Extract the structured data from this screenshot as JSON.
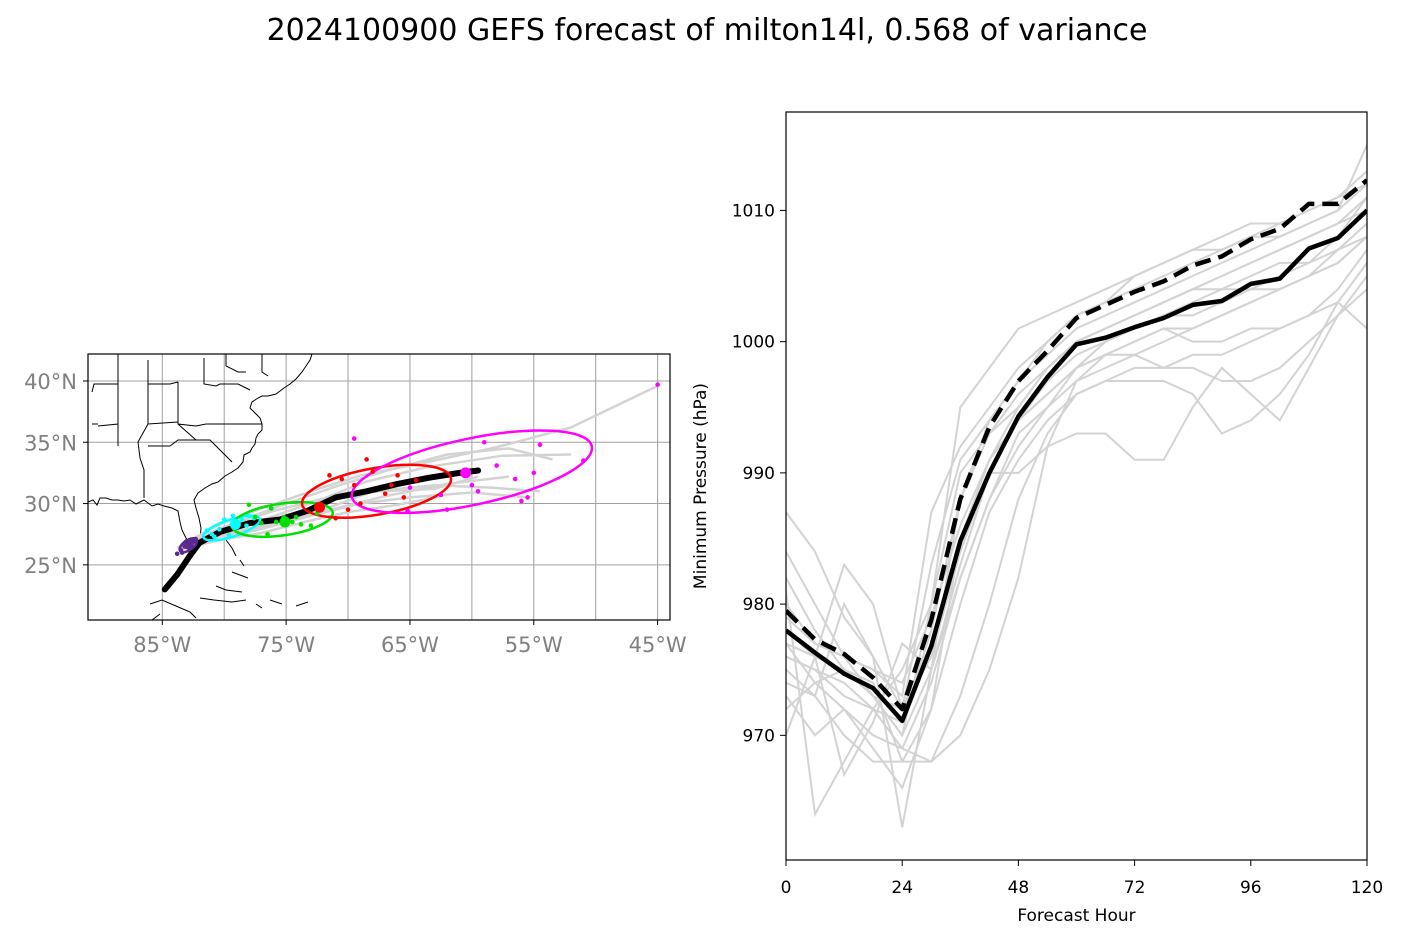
{
  "title": "2024100900 GEFS forecast of milton14l, 0.568 of variance",
  "chart_data": [
    {
      "type": "map",
      "lon_range": [
        -91,
        -44
      ],
      "lat_range": [
        20.5,
        42.2
      ],
      "x_ticks": [
        "85°W",
        "75°W",
        "65°W",
        "55°W",
        "45°W"
      ],
      "y_ticks": [
        "25°N",
        "30°N",
        "35°N",
        "40°N"
      ],
      "x_tick_values": [
        -85,
        -75,
        -65,
        -55,
        -45
      ],
      "y_tick_values": [
        25,
        30,
        35,
        40
      ],
      "grid": true,
      "mean_track": [
        [
          -84.8,
          23.0
        ],
        [
          -83.8,
          24.2
        ],
        [
          -82.8,
          25.7
        ],
        [
          -82.0,
          26.8
        ],
        [
          -80.3,
          27.7
        ],
        [
          -78.0,
          28.4
        ],
        [
          -75.5,
          28.7
        ],
        [
          -73.3,
          29.4
        ],
        [
          -71.0,
          30.5
        ],
        [
          -68.5,
          31.0
        ],
        [
          -66.0,
          31.6
        ],
        [
          -63.5,
          32.1
        ],
        [
          -61.0,
          32.5
        ],
        [
          -59.5,
          32.7
        ]
      ],
      "member_tracks": [
        [
          [
            -83.8,
            26.4
          ],
          [
            -80.6,
            28.2
          ],
          [
            -77.0,
            29.6
          ],
          [
            -73.0,
            31.0
          ],
          [
            -69.0,
            32.3
          ],
          [
            -64.0,
            33.3
          ],
          [
            -58.0,
            34.6
          ],
          [
            -52.0,
            36.2
          ],
          [
            -45.0,
            39.6
          ]
        ],
        [
          [
            -83.5,
            26.5
          ],
          [
            -80.0,
            28.0
          ],
          [
            -76.5,
            28.8
          ],
          [
            -72.5,
            30.2
          ],
          [
            -68.5,
            31.8
          ],
          [
            -63.5,
            33.0
          ],
          [
            -57.5,
            33.9
          ],
          [
            -52.0,
            34.0
          ]
        ],
        [
          [
            -83.5,
            26.5
          ],
          [
            -80.0,
            27.6
          ],
          [
            -76.0,
            28.3
          ],
          [
            -72.0,
            29.5
          ],
          [
            -68.0,
            31.0
          ],
          [
            -63.0,
            31.5
          ],
          [
            -58.5,
            31.3
          ],
          [
            -54.5,
            31.0
          ]
        ],
        [
          [
            -83.6,
            26.4
          ],
          [
            -80.2,
            27.4
          ],
          [
            -76.8,
            28.0
          ],
          [
            -73.0,
            29.0
          ],
          [
            -69.0,
            30.0
          ],
          [
            -65.0,
            30.5
          ],
          [
            -60.0,
            30.9
          ],
          [
            -55.5,
            30.5
          ]
        ],
        [
          [
            -83.6,
            26.3
          ],
          [
            -80.3,
            27.3
          ],
          [
            -77.5,
            27.8
          ],
          [
            -74.5,
            28.6
          ],
          [
            -71.0,
            29.6
          ],
          [
            -67.0,
            30.6
          ],
          [
            -62.0,
            31.6
          ],
          [
            -57.0,
            32.2
          ]
        ],
        [
          [
            -83.4,
            26.6
          ],
          [
            -79.5,
            28.3
          ],
          [
            -75.5,
            29.8
          ],
          [
            -71.0,
            31.4
          ],
          [
            -66.5,
            32.8
          ],
          [
            -62.0,
            34.0
          ],
          [
            -57.0,
            34.5
          ],
          [
            -53.5,
            33.6
          ]
        ],
        [
          [
            -83.5,
            26.6
          ],
          [
            -80.0,
            28.1
          ],
          [
            -76.0,
            29.4
          ],
          [
            -72.0,
            30.4
          ],
          [
            -67.5,
            31.0
          ],
          [
            -63.0,
            31.2
          ],
          [
            -59.5,
            32.2
          ]
        ],
        [
          [
            -83.7,
            26.2
          ],
          [
            -80.5,
            27.0
          ],
          [
            -77.0,
            27.6
          ],
          [
            -73.5,
            28.5
          ],
          [
            -70.0,
            29.3
          ],
          [
            -66.0,
            29.9
          ],
          [
            -62.5,
            30.6
          ]
        ]
      ],
      "ellipses": [
        {
          "color": "#5b2a91",
          "center": [
            -82.9,
            26.6
          ],
          "semi_axes_deg": [
            0.8,
            0.4
          ],
          "angle": 35
        },
        {
          "color": "#00ffff",
          "center": [
            -79.4,
            28.0
          ],
          "semi_axes_deg": [
            2.4,
            0.7
          ],
          "angle": 18
        },
        {
          "color": "#00e000",
          "center": [
            -75.3,
            28.7
          ],
          "semi_axes_deg": [
            4.1,
            1.3
          ],
          "angle": 8
        },
        {
          "color": "#ff0000",
          "center": [
            -67.7,
            31.0
          ],
          "semi_axes_deg": [
            6.1,
            1.9
          ],
          "angle": 10
        },
        {
          "color": "#ff00ff",
          "center": [
            -60.0,
            32.6
          ],
          "semi_axes_deg": [
            9.9,
            2.7
          ],
          "angle": 12
        }
      ],
      "point_groups": [
        {
          "color": "#5b2a91",
          "mean": [
            -82.9,
            26.7
          ],
          "points": [
            [
              -83.8,
              25.9
            ],
            [
              -83.5,
              26.2
            ],
            [
              -83.2,
              26.5
            ],
            [
              -83.0,
              26.6
            ],
            [
              -82.8,
              26.8
            ],
            [
              -82.6,
              26.9
            ],
            [
              -82.3,
              27.1
            ],
            [
              -83.4,
              26.0
            ],
            [
              -82.9,
              26.4
            ],
            [
              -83.1,
              26.8
            ],
            [
              -82.7,
              26.5
            ],
            [
              -82.4,
              26.9
            ]
          ]
        },
        {
          "color": "#00ffff",
          "mean": [
            -79.1,
            28.3
          ],
          "points": [
            [
              -81.0,
              27.5
            ],
            [
              -80.4,
              27.9
            ],
            [
              -80.0,
              28.7
            ],
            [
              -79.6,
              27.4
            ],
            [
              -79.0,
              28.4
            ],
            [
              -78.6,
              28.7
            ],
            [
              -78.2,
              28.2
            ],
            [
              -77.6,
              28.8
            ],
            [
              -81.4,
              27.8
            ],
            [
              -80.8,
              27.3
            ],
            [
              -79.3,
              29.0
            ],
            [
              -78.0,
              29.0
            ]
          ]
        },
        {
          "color": "#00e000",
          "mean": [
            -75.1,
            28.5
          ],
          "points": [
            [
              -78.0,
              29.9
            ],
            [
              -77.0,
              28.4
            ],
            [
              -76.5,
              27.5
            ],
            [
              -75.8,
              28.5
            ],
            [
              -75.2,
              28.9
            ],
            [
              -74.5,
              28.5
            ],
            [
              -73.8,
              28.3
            ],
            [
              -73.0,
              28.2
            ],
            [
              -72.5,
              29.2
            ],
            [
              -76.2,
              29.6
            ],
            [
              -74.2,
              28.9
            ],
            [
              -77.5,
              28.9
            ]
          ]
        },
        {
          "color": "#ff0000",
          "mean": [
            -72.3,
            29.7
          ],
          "points": [
            [
              -71.5,
              32.3
            ],
            [
              -70.5,
              32.0
            ],
            [
              -69.5,
              31.5
            ],
            [
              -68.5,
              33.6
            ],
            [
              -68.0,
              32.6
            ],
            [
              -67.0,
              30.8
            ],
            [
              -66.5,
              31.5
            ],
            [
              -65.5,
              30.5
            ],
            [
              -64.5,
              31.9
            ],
            [
              -70.0,
              29.5
            ],
            [
              -71.0,
              28.8
            ],
            [
              -72.5,
              29.9
            ],
            [
              -69.0,
              30.0
            ],
            [
              -66.0,
              32.3
            ]
          ]
        },
        {
          "color": "#ff00ff",
          "mean": [
            -60.5,
            32.5
          ],
          "points": [
            [
              -69.5,
              35.3
            ],
            [
              -65.0,
              31.3
            ],
            [
              -65.2,
              29.4
            ],
            [
              -62.0,
              29.5
            ],
            [
              -59.5,
              31.0
            ],
            [
              -59.0,
              35.0
            ],
            [
              -58.0,
              33.1
            ],
            [
              -56.5,
              32.0
            ],
            [
              -55.5,
              30.5
            ],
            [
              -54.5,
              34.8
            ],
            [
              -51.0,
              33.5
            ],
            [
              -55.0,
              32.5
            ],
            [
              -45.0,
              39.7
            ],
            [
              -60.0,
              31.5
            ],
            [
              -62.5,
              30.7
            ],
            [
              -56.0,
              30.2
            ]
          ]
        }
      ]
    },
    {
      "type": "line",
      "xlabel": "Forecast Hour",
      "ylabel": "Minimum Pressure (hPa)",
      "xlim": [
        0,
        120
      ],
      "ylim": [
        960.5,
        1017.5
      ],
      "x_ticks": [
        0,
        24,
        48,
        72,
        96,
        120
      ],
      "y_ticks": [
        970,
        980,
        990,
        1000,
        1010
      ],
      "x": [
        0,
        6,
        12,
        18,
        24,
        30,
        36,
        42,
        48,
        54,
        60,
        66,
        72,
        78,
        84,
        90,
        96,
        102,
        108,
        114,
        120
      ],
      "series": [
        {
          "style": "solid-black",
          "values": [
            978.0,
            976.3,
            974.7,
            973.6,
            971.1,
            976.8,
            984.8,
            990.0,
            994.3,
            997.3,
            999.8,
            1000.3,
            1001.1,
            1001.8,
            1002.8,
            1003.1,
            1004.4,
            1004.8,
            1007.1,
            1007.9,
            1010.0
          ]
        },
        {
          "style": "dashed-black",
          "values": [
            979.5,
            977.3,
            976.2,
            974.4,
            972.0,
            978.8,
            988.0,
            993.5,
            997.0,
            999.3,
            1001.8,
            1002.8,
            1003.8,
            1004.6,
            1005.8,
            1006.5,
            1007.8,
            1008.6,
            1010.5,
            1010.5,
            1012.3
          ]
        }
      ],
      "members": [
        [
          987,
          984,
          979,
          976,
          972,
          977,
          985,
          991,
          995,
          998,
          1000,
          1001,
          1002,
          1003,
          1004,
          1005,
          1006,
          1007,
          1008,
          1009,
          1010
        ],
        [
          984,
          980,
          976,
          973,
          970,
          975,
          983,
          990,
          994,
          997,
          999,
          1000,
          1001,
          1002,
          1002,
          1003,
          1004,
          1004,
          1005,
          1006,
          1008
        ],
        [
          981,
          964,
          968,
          972,
          975,
          980,
          990,
          993,
          995,
          998,
          1000,
          1001,
          1002,
          1003,
          1004,
          1004,
          1005,
          1006,
          1006,
          1008,
          1011
        ],
        [
          979,
          977,
          976,
          975,
          973,
          987,
          992,
          995,
          998,
          1000,
          1002,
          1003,
          1004,
          1005,
          1006,
          1007,
          1008,
          1009,
          1010,
          1011,
          1012
        ],
        [
          977,
          976,
          983,
          980,
          972,
          983,
          991,
          994,
          997,
          999,
          1001,
          1002,
          1003,
          1004,
          1005,
          1006,
          1007,
          1008,
          1009,
          1010,
          1015
        ],
        [
          976,
          975,
          974,
          972,
          969,
          968,
          973,
          980,
          988,
          993,
          996,
          997,
          998,
          998,
          999,
          999,
          1000,
          1001,
          1002,
          1004,
          1007
        ],
        [
          974,
          973,
          980,
          976,
          963,
          975,
          988,
          993,
          996,
          998,
          1000,
          1001,
          1002,
          1003,
          1004,
          1005,
          1006,
          1007,
          1008,
          1009,
          1011
        ],
        [
          972,
          974,
          975,
          973,
          970,
          980,
          995,
          998,
          1001,
          1002,
          1003,
          1004,
          1005,
          1006,
          1007,
          1008,
          1009,
          1009,
          1010,
          1011,
          1013
        ],
        [
          970,
          976,
          967,
          971,
          977,
          975,
          982,
          988,
          993,
          995,
          998,
          999,
          999,
          998,
          998,
          997,
          997,
          998,
          1000,
          1002,
          1005
        ],
        [
          978,
          976,
          975,
          974,
          968,
          968,
          970,
          975,
          982,
          992,
          997,
          999,
          1000,
          1001,
          1000,
          1000,
          1001,
          1001,
          1002,
          1003,
          1001
        ],
        [
          975,
          973,
          970,
          968,
          968,
          972,
          985,
          990,
          990,
          992,
          993,
          993,
          991,
          991,
          995,
          998,
          996,
          994,
          998,
          1002,
          1004
        ],
        [
          982,
          978,
          975,
          973,
          972,
          976,
          984,
          990,
          994,
          996,
          998,
          1000,
          1001,
          1002,
          1003,
          1004,
          1004,
          1005,
          1006,
          1007,
          1008
        ],
        [
          977,
          974,
          972,
          970,
          969,
          974,
          982,
          988,
          992,
          995,
          997,
          998,
          999,
          1000,
          1001,
          1002,
          1003,
          1004,
          1005,
          1007,
          1009
        ],
        [
          973,
          970,
          972,
          969,
          966,
          972,
          980,
          987,
          991,
          994,
          996,
          997,
          997,
          997,
          996,
          993,
          994,
          996,
          999,
          1003,
          1006
        ],
        [
          980,
          977,
          976,
          975,
          974,
          979,
          986,
          991,
          994,
          996,
          998,
          999,
          1000,
          1001,
          1001,
          1002,
          1003,
          1004,
          1005,
          1006,
          1008
        ],
        [
          976,
          975,
          973,
          972,
          971,
          978,
          988,
          994,
          997,
          1000,
          1002,
          1003,
          1005,
          1006,
          1007,
          1007,
          1008,
          1008,
          1009,
          1010,
          1012
        ]
      ]
    }
  ]
}
